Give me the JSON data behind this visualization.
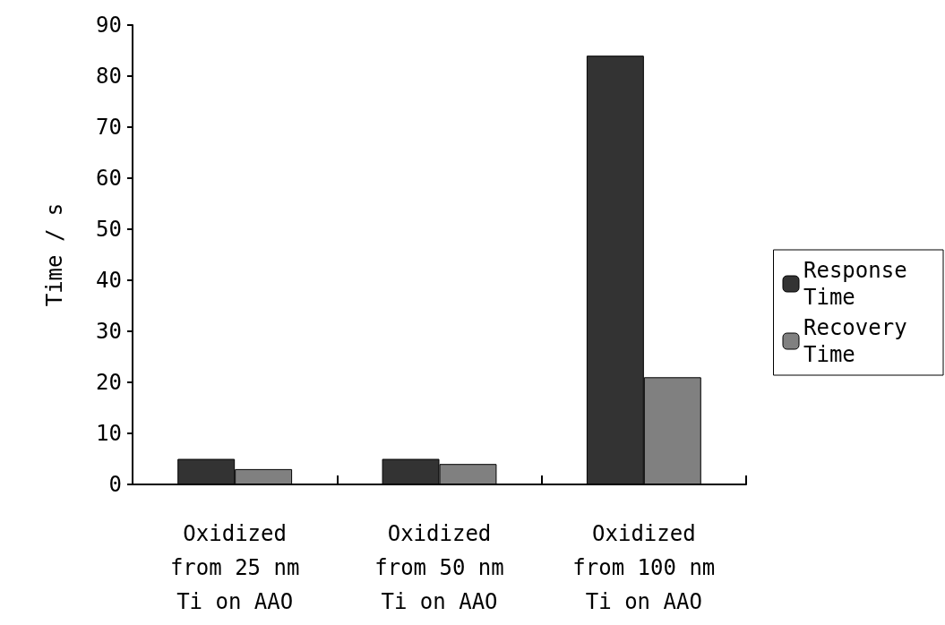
{
  "chart_data": {
    "type": "bar",
    "ylabel": "Time / s",
    "categories": [
      "Oxidized\nfrom 25 nm\nTi on AAO",
      "Oxidized\nfrom 50 nm\nTi on AAO",
      "Oxidized\nfrom 100 nm\nTi on AAO"
    ],
    "series": [
      {
        "name": "Response Time",
        "color": "#333333",
        "values": [
          5,
          5,
          84
        ]
      },
      {
        "name": "Recovery Time",
        "color": "#808080",
        "values": [
          3,
          4,
          21
        ]
      }
    ],
    "ylim": [
      0,
      90
    ],
    "yticks": [
      0,
      10,
      20,
      30,
      40,
      50,
      60,
      70,
      80,
      90
    ],
    "grid": false,
    "legend": "right"
  }
}
